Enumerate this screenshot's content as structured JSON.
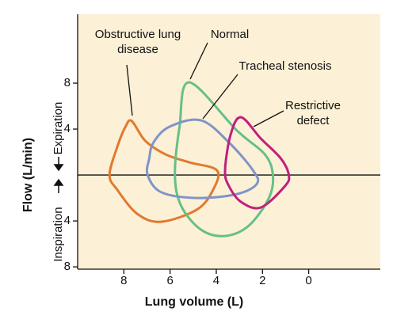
{
  "chart_data": {
    "type": "line",
    "x_label": "Lung volume (L)",
    "y_label": "Flow (L/min)",
    "y_label_upper": "Expiration",
    "y_label_lower": "Inspiration",
    "xlim": [
      10,
      -3.1
    ],
    "ylim": [
      -8.2,
      14
    ],
    "xticks": [
      8,
      6,
      4,
      2,
      0
    ],
    "yticks": [
      8,
      4,
      {
        "value": -4,
        "label": "4"
      },
      {
        "value": -8,
        "label": "8"
      }
    ],
    "background": "#fcf0d6",
    "series": [
      {
        "name": "Obstructive lung disease",
        "color": "#e07a2e",
        "x": [
          8.62,
          8.28,
          7.93,
          7.66,
          7.07,
          6.2,
          5.17,
          3.97,
          4.14,
          4.83,
          6.38,
          7.41,
          8.28
        ],
        "values": [
          0,
          2.48,
          4.2,
          4.7,
          2.97,
          1.8,
          1.1,
          0.4,
          -1.3,
          -3.0,
          -4.07,
          -3.4,
          -1.3
        ]
      },
      {
        "name": "Normal",
        "color": "#66bf88",
        "x": [
          5.17,
          3.1,
          1.9,
          1.55,
          1.72,
          2.59,
          3.62,
          4.66,
          5.52,
          5.79,
          5.59
        ],
        "values": [
          8.07,
          3.86,
          1.8,
          0,
          -2,
          -4.41,
          -5.31,
          -4.76,
          -2.69,
          0,
          4.2
        ]
      },
      {
        "name": "Tracheal stenosis",
        "color": "#7f94c8",
        "x": [
          4.66,
          3.45,
          2.41,
          2.24,
          3.1,
          4.83,
          6.38,
          6.97,
          6.9,
          6.72,
          6.03
        ],
        "values": [
          4.76,
          2.83,
          0.4,
          -0.76,
          -1.66,
          -2,
          -1.5,
          0,
          1.45,
          2.83,
          4.2
        ]
      },
      {
        "name": "Restrictive defect",
        "color": "#c0207a",
        "x": [
          2.93,
          2.07,
          1.21,
          0.86,
          1.03,
          2.07,
          2.93,
          3.45,
          3.62,
          3.38
        ],
        "values": [
          5.03,
          3.17,
          1.45,
          0,
          -0.97,
          -2.83,
          -2.34,
          -0.97,
          0.41,
          3.52
        ]
      }
    ]
  }
}
